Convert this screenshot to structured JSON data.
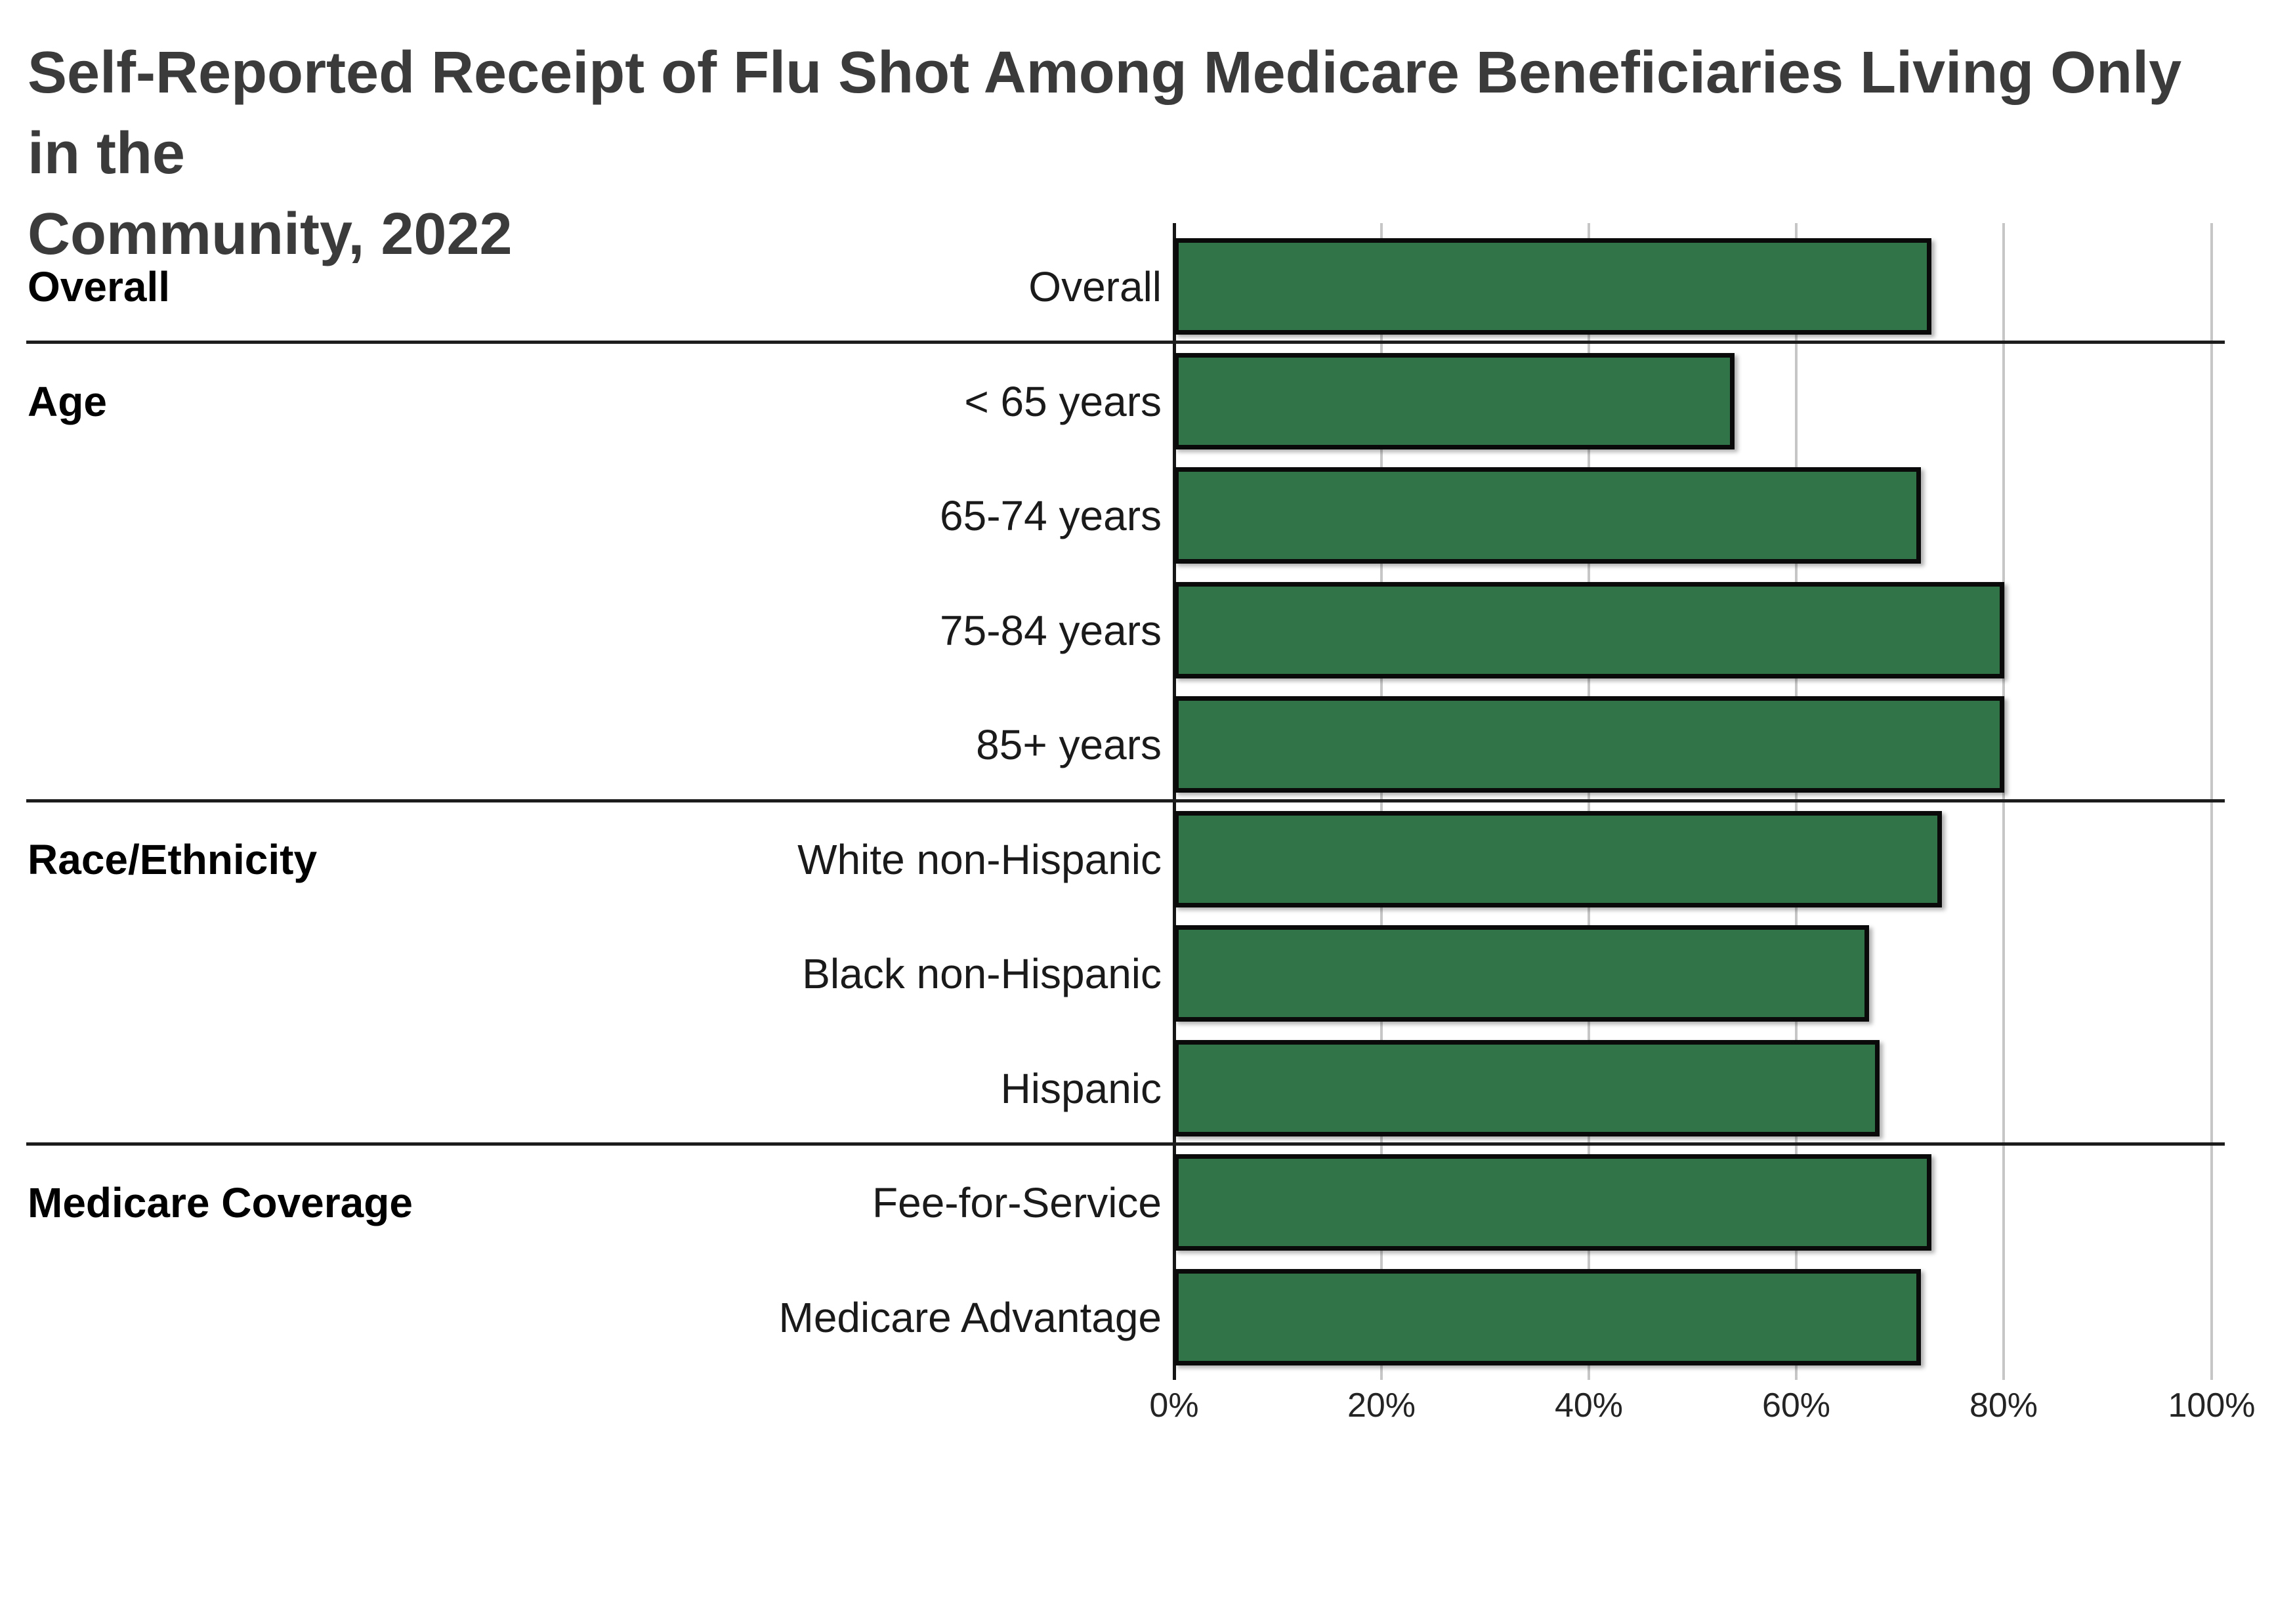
{
  "title": "Self-Reported Receipt of Flu Shot Among Medicare Beneficiaries Living Only in the\nCommunity, 2022",
  "chart_data": {
    "type": "bar",
    "orientation": "horizontal",
    "title": "Self-Reported Receipt of Flu Shot Among Medicare Beneficiaries Living Only in the Community, 2022",
    "unit": "%",
    "xlim": [
      0,
      100
    ],
    "x_ticks": [
      "0%",
      "20%",
      "40%",
      "60%",
      "80%",
      "100%"
    ],
    "grid": "vertical",
    "bar_color": "#307448",
    "bar_border_color": "#0a0a0a",
    "groups": [
      {
        "label": "Overall",
        "rows": [
          {
            "label": "Overall",
            "value": 73
          }
        ]
      },
      {
        "label": "Age",
        "rows": [
          {
            "label": "< 65 years",
            "value": 54
          },
          {
            "label": "65-74 years",
            "value": 72
          },
          {
            "label": "75-84 years",
            "value": 80
          },
          {
            "label": "85+ years",
            "value": 80
          }
        ]
      },
      {
        "label": "Race/Ethnicity",
        "rows": [
          {
            "label": "White non-Hispanic",
            "value": 74
          },
          {
            "label": "Black non-Hispanic",
            "value": 67
          },
          {
            "label": "Hispanic",
            "value": 68
          }
        ]
      },
      {
        "label": "Medicare Coverage",
        "rows": [
          {
            "label": "Fee-for-Service",
            "value": 73
          },
          {
            "label": "Medicare Advantage",
            "value": 72
          }
        ]
      }
    ]
  }
}
